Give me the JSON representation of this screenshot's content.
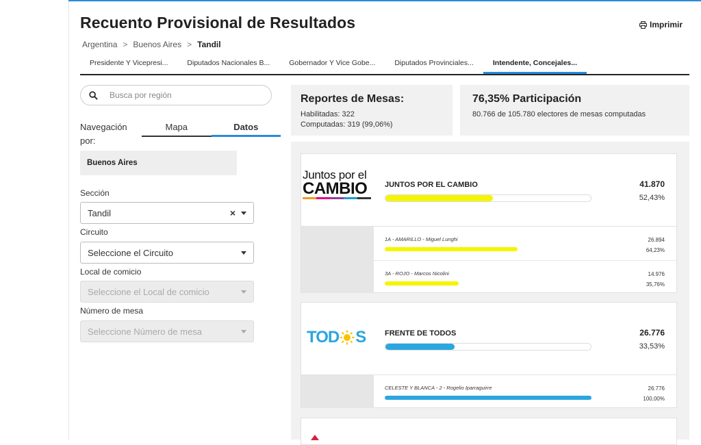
{
  "header": {
    "title": "Recuento Provisional de Resultados",
    "print_label": "Imprimir"
  },
  "breadcrumb": [
    "Argentina",
    "Buenos Aires",
    "Tandil"
  ],
  "tabs": [
    {
      "label": "Presidente Y Vicepresi..."
    },
    {
      "label": "Diputados Nacionales B..."
    },
    {
      "label": "Gobernador Y Vice Gobe..."
    },
    {
      "label": "Diputados Provinciales..."
    },
    {
      "label": "Intendente, Concejales...",
      "active": true
    }
  ],
  "sidebar": {
    "search_placeholder": "Busca por región",
    "nav_label": "Navegación por:",
    "nav_tabs": [
      "Mapa",
      "Datos"
    ],
    "region": "Buenos Aires",
    "seccion_label": "Sección",
    "seccion_value": "Tandil",
    "circuito_label": "Circuito",
    "circuito_placeholder": "Seleccione el Circuito",
    "local_label": "Local de comicio",
    "local_placeholder": "Seleccione el Local de comicio",
    "mesa_label": "Número de mesa",
    "mesa_placeholder": "Seleccione Número de mesa"
  },
  "mesas": {
    "title": "Reportes de Mesas:",
    "habilitadas": "Habilitadas: 322",
    "computadas": "Computadas: 319 (99,06%)"
  },
  "participacion": {
    "title": "76,35% Participación",
    "detail": "80.766 de 105.780 electores de mesas computadas"
  },
  "parties": [
    {
      "logo_line1": "Juntos por el",
      "logo_line2": "CAMBIO",
      "name": "JUNTOS POR EL CAMBIO",
      "votes": "41.870",
      "pct": "52,43%",
      "share": 0.5243,
      "color": "#f5f500",
      "lists": [
        {
          "name": "1A - AMARILLO - Miguel Lunghi",
          "votes": "26.894",
          "pct": "64,23%",
          "share": 0.6423
        },
        {
          "name": "3A - ROJO - Marcos Nicolini",
          "votes": "14.976",
          "pct": "35,76%",
          "share": 0.3576
        }
      ]
    },
    {
      "logo_text": "TOD S",
      "name": "FRENTE DE TODOS",
      "votes": "26.776",
      "pct": "33,53%",
      "share": 0.3353,
      "color": "#2ba6de",
      "lists": [
        {
          "name": "CELESTE Y BLANCA - 2 - Rogelio Iparraguirre",
          "votes": "26.776",
          "pct": "100,00%",
          "share": 1.0
        }
      ]
    }
  ],
  "colors": {
    "accent": "#2a8bd8",
    "jxc_yellow": "#f5f500",
    "fdt_blue": "#2ba6de"
  }
}
